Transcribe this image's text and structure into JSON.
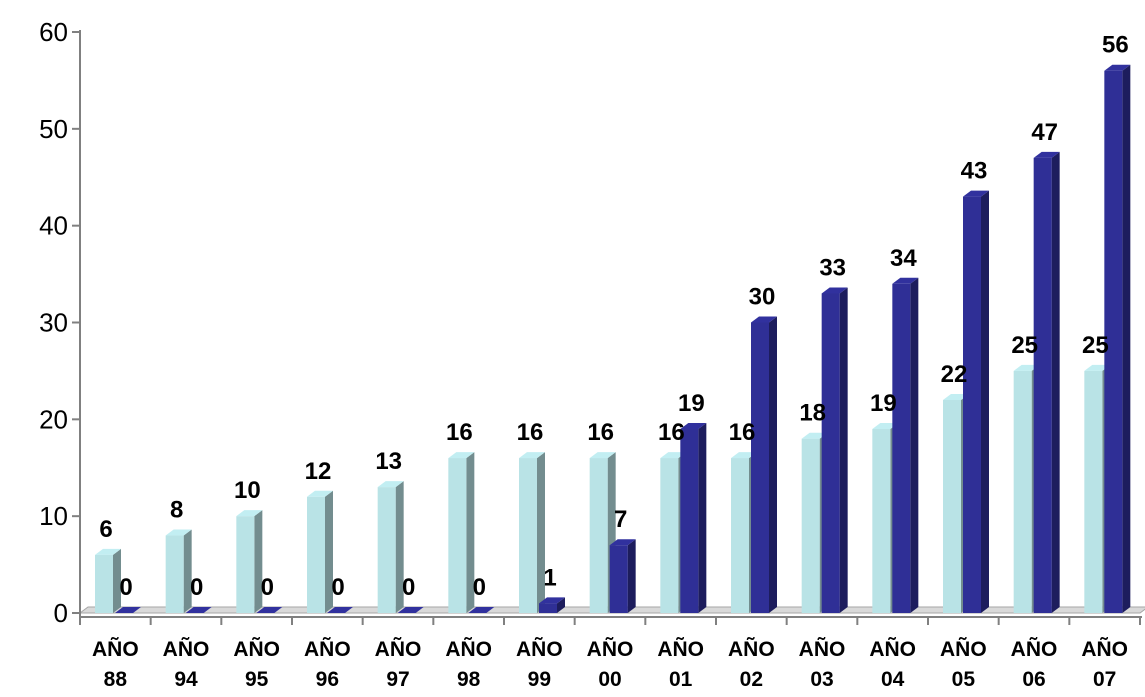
{
  "chart_data": {
    "type": "bar",
    "title": "",
    "xlabel": "",
    "ylabel": "",
    "ylim": [
      0,
      60
    ],
    "yticks": [
      "0",
      "10",
      "20",
      "30",
      "40",
      "50",
      "60"
    ],
    "grid": false,
    "legend": "none",
    "categories": [
      [
        "AÑO",
        "88"
      ],
      [
        "AÑO",
        "94"
      ],
      [
        "AÑO",
        "95"
      ],
      [
        "AÑO",
        "96"
      ],
      [
        "AÑO",
        "97"
      ],
      [
        "AÑO",
        "98"
      ],
      [
        "AÑO",
        "99"
      ],
      [
        "AÑO",
        "00"
      ],
      [
        "AÑO",
        "01"
      ],
      [
        "AÑO",
        "02"
      ],
      [
        "AÑO",
        "03"
      ],
      [
        "AÑO",
        "04"
      ],
      [
        "AÑO",
        "05"
      ],
      [
        "AÑO",
        "06"
      ],
      [
        "AÑO",
        "07"
      ]
    ],
    "series": [
      {
        "color": "#b9e3e6",
        "values": [
          6,
          8,
          10,
          12,
          13,
          16,
          16,
          16,
          16,
          16,
          18,
          19,
          22,
          25,
          25
        ]
      },
      {
        "color": "#2f2f96",
        "values": [
          0,
          0,
          0,
          0,
          0,
          0,
          1,
          7,
          19,
          30,
          33,
          34,
          43,
          47,
          56
        ]
      }
    ]
  }
}
